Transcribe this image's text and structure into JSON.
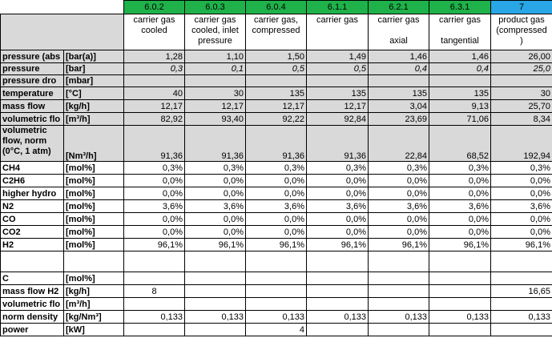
{
  "columns": [
    {
      "id": "6.0.2",
      "color": "#1fb24a",
      "desc": [
        "carrier gas",
        "cooled",
        ""
      ]
    },
    {
      "id": "6.0.3",
      "color": "#1fb24a",
      "desc": [
        "carrier gas",
        "cooled, inlet",
        "pressure"
      ]
    },
    {
      "id": "6.0.4",
      "color": "#1fb24a",
      "desc": [
        "carrier gas,",
        "compressed",
        ""
      ]
    },
    {
      "id": "6.1.1",
      "color": "#1fb24a",
      "desc": [
        "carrier gas",
        "",
        ""
      ]
    },
    {
      "id": "6.2.1",
      "color": "#1fb24a",
      "desc": [
        "carrier gas",
        "",
        "axial"
      ]
    },
    {
      "id": "6.3.1",
      "color": "#1fb24a",
      "desc": [
        "carrier gas",
        "",
        "tangential"
      ]
    },
    {
      "id": "7",
      "color": "#29a6e6",
      "desc": [
        "product gas",
        "(compressed",
        ")"
      ]
    }
  ],
  "rows": [
    {
      "param": "pressure (abs",
      "unit": "[bar(a)]",
      "values": [
        "1,28",
        "1,10",
        "1,50",
        "1,49",
        "1,46",
        "1,46",
        "26,00"
      ]
    },
    {
      "param": "pressure",
      "unit": "[bar]",
      "values": [
        "0,3",
        "0,1",
        "0,5",
        "0,5",
        "0,4",
        "0,4",
        "25,0"
      ]
    },
    {
      "param": "pressure dro",
      "unit": "[mbar]",
      "values": [
        "",
        "",
        "",
        "",
        "",
        "",
        ""
      ]
    },
    {
      "param": "temperature",
      "unit": "[°C]",
      "values": [
        "40",
        "30",
        "135",
        "135",
        "135",
        "135",
        "30"
      ]
    },
    {
      "param": "mass flow",
      "unit": "[kg/h]",
      "values": [
        "12,17",
        "12,17",
        "12,17",
        "12,17",
        "3,04",
        "9,13",
        "25,70"
      ]
    },
    {
      "param": "volumetric flo",
      "unit": "[m³/h]",
      "values": [
        "82,92",
        "93,40",
        "92,22",
        "92,84",
        "23,69",
        "71,06",
        "8,34"
      ]
    },
    {
      "param": "volumetric flow, norm (0°C, 1 atm)",
      "unit": "[Nm³/h]",
      "values": [
        "91,36",
        "91,36",
        "91,36",
        "91,36",
        "22,84",
        "68,52",
        "192,94"
      ]
    },
    {
      "param": "CH4",
      "unit": "[mol%]",
      "values": [
        "0,3%",
        "0,3%",
        "0,3%",
        "0,3%",
        "0,3%",
        "0,3%",
        "0,3%"
      ]
    },
    {
      "param": "C2H6",
      "unit": "[mol%]",
      "values": [
        "0,0%",
        "0,0%",
        "0,0%",
        "0,0%",
        "0,0%",
        "0,0%",
        "0,0%"
      ]
    },
    {
      "param": "higher hydro",
      "unit": "[mol%]",
      "values": [
        "0,0%",
        "0,0%",
        "0,0%",
        "0,0%",
        "0,0%",
        "0,0%",
        "0,0%"
      ]
    },
    {
      "param": "N2",
      "unit": "[mol%]",
      "values": [
        "3,6%",
        "3,6%",
        "3,6%",
        "3,6%",
        "3,6%",
        "3,6%",
        "3,6%"
      ]
    },
    {
      "param": "CO",
      "unit": "[mol%]",
      "values": [
        "0,0%",
        "0,0%",
        "0,0%",
        "0,0%",
        "0,0%",
        "0,0%",
        "0,0%"
      ]
    },
    {
      "param": "CO2",
      "unit": "[mol%]",
      "values": [
        "0,0%",
        "0,0%",
        "0,0%",
        "0,0%",
        "0,0%",
        "0,0%",
        "0,0%"
      ]
    },
    {
      "param": "H2",
      "unit": "[mol%]",
      "values": [
        "96,1%",
        "96,1%",
        "96,1%",
        "96,1%",
        "96,1%",
        "96,1%",
        "96,1%"
      ]
    },
    {
      "param": "",
      "unit": "",
      "values": [
        "",
        "",
        "",
        "",
        "",
        "",
        ""
      ]
    },
    {
      "param": "C",
      "unit": "[mol%]",
      "values": [
        "",
        "",
        "",
        "",
        "",
        "",
        ""
      ]
    },
    {
      "param": "mass flow H2",
      "unit": "[kg/h]",
      "values": [
        "8",
        "",
        "",
        "",
        "",
        "",
        "16,65"
      ]
    },
    {
      "param": "volumetric flo",
      "unit": "[m³/h]",
      "values": [
        "",
        "",
        "",
        "",
        "",
        "",
        ""
      ]
    },
    {
      "param": "norm density",
      "unit": "[kg/Nm³]",
      "values": [
        "0,133",
        "0,133",
        "0,133",
        "0,133",
        "0,133",
        "0,133",
        "0,133"
      ]
    },
    {
      "param": "power",
      "unit": "[kW]",
      "values": [
        "",
        "",
        "4",
        "",
        "",
        "",
        ""
      ]
    }
  ]
}
